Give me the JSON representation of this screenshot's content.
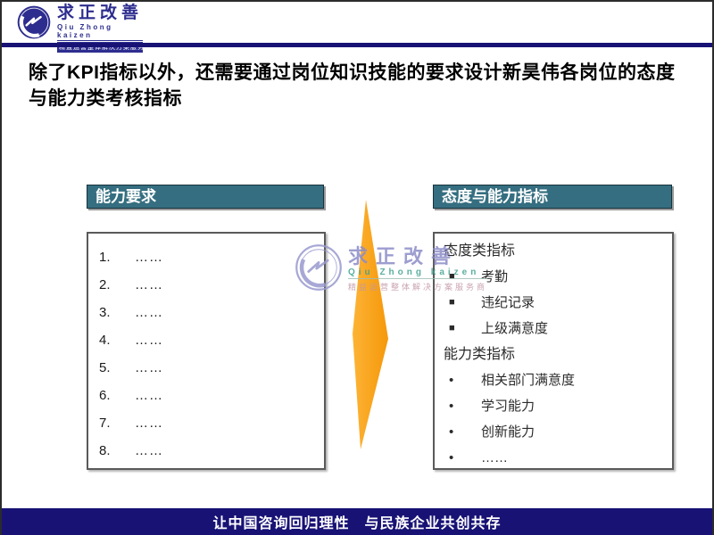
{
  "slide": {
    "title": "除了KPI指标以外，还需要通过岗位知识技能的要求设计新昊伟各岗位的态度与能力类考核指标",
    "footer": "让中国咨询回归理性　与民族企业共创共存"
  },
  "brand": {
    "name": "求正改善",
    "romanized": "Qiu Zhong kaizen",
    "tagline": "精益运营整体解决方案服务商"
  },
  "watermark": {
    "name": "求正改善",
    "romanized": "Qiu Zhong kaizen",
    "tagline": "精益运营整体解决方案服务商"
  },
  "left_panel": {
    "header": "能力要求",
    "items": [
      {
        "num": "1.",
        "text": "……"
      },
      {
        "num": "2.",
        "text": "……"
      },
      {
        "num": "3.",
        "text": "……"
      },
      {
        "num": "4.",
        "text": "……"
      },
      {
        "num": "5.",
        "text": "……"
      },
      {
        "num": "6.",
        "text": "……"
      },
      {
        "num": "7.",
        "text": "……"
      },
      {
        "num": "8.",
        "text": "……"
      }
    ]
  },
  "right_panel": {
    "header": "态度与能力指标",
    "groups": [
      {
        "label": "态度类指标",
        "bullet": "■",
        "bullet_name": "square-bullet-icon",
        "bullet_class": "square",
        "items": [
          "考勤",
          "违纪记录",
          "上级满意度"
        ]
      },
      {
        "label": "能力类指标",
        "bullet": "•",
        "bullet_name": "round-bullet-icon",
        "bullet_class": "round",
        "items": [
          "相关部门满意度",
          "学习能力",
          "创新能力",
          "……"
        ]
      }
    ]
  },
  "colors": {
    "navy": "#181275",
    "teal": "#356E80",
    "orange": "#F9A11B",
    "brand_navy": "#2d2d8f",
    "watermark_purple": "#8c8cc8"
  }
}
